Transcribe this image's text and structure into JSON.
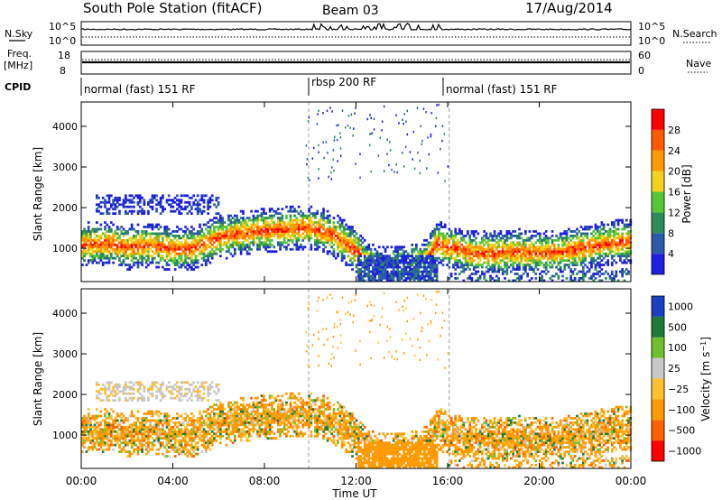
{
  "header": {
    "title": "South Pole Station (fitACF)",
    "beam": "Beam 03",
    "date": "17/Aug/2014"
  },
  "top_panels": {
    "nsky_label": "N.Sky",
    "nsky_ticks": [
      "10^5",
      "10^0"
    ],
    "nsearch_label": "N.Search",
    "nsearch_ticks": [
      "10^5",
      "10^0"
    ],
    "freq_label": "Freq.",
    "freq_unit": "[MHz]",
    "freq_ticks": [
      "18",
      "8"
    ],
    "nave_label": "Nave",
    "nave_ticks": [
      "60",
      "0"
    ],
    "cpid_label": "CPID",
    "cpid_segments": [
      {
        "label": "normal (fast) 151 RF",
        "start_hour": 0,
        "end_hour": 9.93
      },
      {
        "label": "rbsp 200 RF",
        "start_hour": 9.93,
        "end_hour": 16.07
      },
      {
        "label": "normal (fast) 151 RF",
        "start_hour": 16.07,
        "end_hour": 24
      }
    ]
  },
  "chart_data": [
    {
      "type": "heatmap",
      "quantity": "power",
      "ylabel": "Slant Range [km]",
      "xlabel": "Time UT",
      "xlim": [
        0,
        24
      ],
      "ylim": [
        180,
        4600
      ],
      "x_ticks": [
        "00:00",
        "04:00",
        "08:00",
        "12:00",
        "16:00",
        "20:00",
        "00:00"
      ],
      "y_ticks": [
        1000,
        2000,
        3000,
        4000
      ],
      "colorbar_label": "Power [dB]",
      "colorbar_ticks": [
        28,
        24,
        20,
        16,
        12,
        8,
        4
      ],
      "colorbar_range": [
        0,
        30
      ],
      "colorbar_colors": [
        "#1f1fe0",
        "#2a5aa8",
        "#2f8a5a",
        "#57c73a",
        "#f2d21c",
        "#ff9a00",
        "#ff5a00",
        "#ff0000"
      ],
      "main_band_center_km": [
        [
          0,
          1050
        ],
        [
          1,
          1100
        ],
        [
          2,
          1000
        ],
        [
          3,
          1050
        ],
        [
          4,
          950
        ],
        [
          5,
          1000
        ],
        [
          6,
          1250
        ],
        [
          7,
          1350
        ],
        [
          8,
          1400
        ],
        [
          9,
          1450
        ],
        [
          10,
          1500
        ],
        [
          11,
          1300
        ],
        [
          12,
          900
        ],
        [
          12.5,
          550
        ],
        [
          13,
          450
        ],
        [
          14,
          500
        ],
        [
          15,
          650
        ],
        [
          15.5,
          1100
        ],
        [
          16,
          1000
        ],
        [
          17,
          850
        ],
        [
          18,
          850
        ],
        [
          19,
          900
        ],
        [
          20,
          850
        ],
        [
          21,
          900
        ],
        [
          22,
          1000
        ],
        [
          23,
          1100
        ],
        [
          24,
          1150
        ]
      ],
      "upper_echo_region_km": {
        "start_hour": 0.6,
        "end_hour": 6,
        "range": [
          1800,
          2300
        ]
      }
    },
    {
      "type": "heatmap",
      "quantity": "velocity",
      "ylabel": "Slant Range [km]",
      "xlabel": "Time UT",
      "xlim": [
        0,
        24
      ],
      "ylim": [
        180,
        4600
      ],
      "x_ticks": [
        "00:00",
        "04:00",
        "08:00",
        "12:00",
        "16:00",
        "20:00",
        "00:00"
      ],
      "y_ticks": [
        1000,
        2000,
        3000,
        4000
      ],
      "colorbar_label": "Velocity [m s^-1]",
      "colorbar_ticks": [
        "1000",
        "500",
        "100",
        "25",
        "−25",
        "−100",
        "−500",
        "−1000"
      ],
      "colorbar_colors": [
        "#1a3fbf",
        "#1f7a3a",
        "#6fbf2f",
        "#c8c8c8",
        "#ffc030",
        "#ff9a00",
        "#ff6000",
        "#ff0000"
      ]
    }
  ],
  "colors": {
    "frame": "#000000",
    "divider": "#888888"
  }
}
